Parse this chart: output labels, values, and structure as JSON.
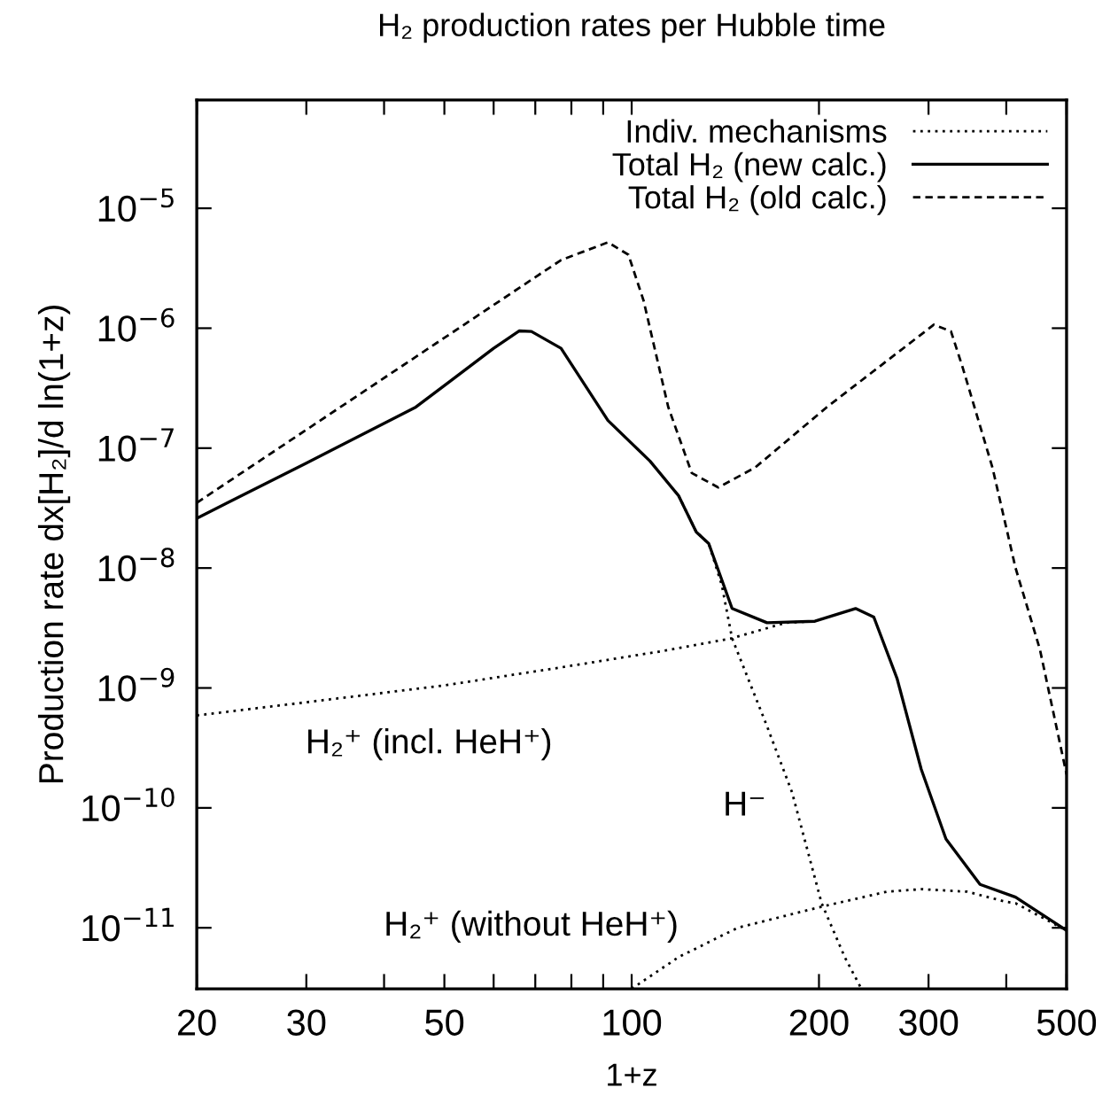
{
  "chart_data": {
    "type": "line",
    "title": "H₂ production rates per Hubble time",
    "xlabel": "1+z",
    "ylabel": "Production rate dx[H₂]/d ln(1+z)",
    "log": "xy",
    "xlim": [
      20,
      500
    ],
    "ylim": [
      3.1e-12,
      8e-05
    ],
    "xticks": [
      20,
      30,
      {
        "value": 40,
        "label": null
      },
      50,
      {
        "value": 60,
        "label": null
      },
      {
        "value": 70,
        "label": null
      },
      {
        "value": 80,
        "label": null
      },
      {
        "value": 90,
        "label": null
      },
      100,
      200,
      300,
      {
        "value": 400,
        "label": null
      },
      500
    ],
    "yticks": [
      {
        "value": 1e-11,
        "label": "10$^{−11}$"
      },
      {
        "value": 1e-10,
        "label": "10$^{−10}$"
      },
      {
        "value": 1e-09,
        "label": "10$^{−9}$"
      },
      {
        "value": 1e-08,
        "label": "10$^{−8}$"
      },
      {
        "value": 1e-07,
        "label": "10$^{−7}$"
      },
      {
        "value": 1e-06,
        "label": "10$^{−6}$"
      },
      {
        "value": 1e-05,
        "label": "10$^{−5}$"
      }
    ],
    "grid": false,
    "legend": "top right",
    "series": [
      {
        "name": "Indiv. mechanisms",
        "color": "#000000",
        "line_style": "dotted",
        "x": [
          20,
          30,
          50,
          78,
          110,
          145,
          177,
          197
        ],
        "values": [
          5.9e-10,
          7.6e-10,
          1.05e-09,
          1.5e-09,
          2e-09,
          2.6e-09,
          3.5e-09,
          3.6e-09
        ]
      },
      {
        "color": "#000000",
        "line_style": "dotted",
        "x": [
          119,
          127,
          133,
          139.6,
          145,
          165,
          181,
          202,
          220,
          234
        ],
        "values": [
          4e-08,
          2e-08,
          1.6e-08,
          7.2e-09,
          2.6e-09,
          4.8e-10,
          1.35e-10,
          1.6e-11,
          5.7e-12,
          3.1e-12
        ]
      },
      {
        "color": "#000000",
        "line_style": "dotted",
        "x": [
          100,
          119,
          148,
          202,
          257,
          292,
          346,
          399,
          414,
          500
        ],
        "values": [
          3.1e-12,
          5.7e-12,
          1e-11,
          1.5e-11,
          2e-11,
          2.1e-11,
          2e-11,
          1.65e-11,
          1.6e-11,
          9.5e-12
        ]
      },
      {
        "name": "Total H₂ (new calc.)",
        "color": "#000000",
        "line_style": "solid",
        "x": [
          20,
          30,
          45,
          60,
          66,
          69,
          77,
          91.6,
          107,
          119,
          127,
          133,
          145,
          165,
          197,
          229,
          245,
          267,
          292,
          320,
          363,
          414,
          500
        ],
        "values": [
          2.6e-08,
          7.5e-08,
          2.2e-07,
          6.8e-07,
          9.5e-07,
          9.4e-07,
          6.8e-07,
          1.7e-07,
          7.8e-08,
          4e-08,
          2e-08,
          1.6e-08,
          4.6e-09,
          3.5e-09,
          3.6e-09,
          4.6e-09,
          3.9e-09,
          1.2e-09,
          2.1e-10,
          5.5e-11,
          2.3e-11,
          1.8e-11,
          9.5e-12
        ]
      },
      {
        "name": "Total H₂ (old calc.)",
        "color": "#000000",
        "line_style": "dashed",
        "x": [
          20,
          77,
          91.6,
          98.8,
          104.5,
          114.5,
          124.9,
          137.8,
          158,
          206,
          306,
          326,
          340,
          380,
          414,
          453,
          500
        ],
        "values": [
          3.5e-08,
          3.7e-06,
          5.2e-06,
          4.1e-06,
          1.7e-06,
          2.2e-07,
          6.2e-08,
          4.7e-08,
          6.9e-08,
          2.2e-07,
          1.07e-06,
          9.4e-07,
          4.8e-07,
          6.9e-08,
          1e-08,
          2.1e-09,
          1.9e-10
        ]
      }
    ],
    "annotations": [
      "H₂⁺ (incl. HeH⁺)",
      "H⁻",
      "H₂⁺ (without HeH⁺)"
    ]
  }
}
